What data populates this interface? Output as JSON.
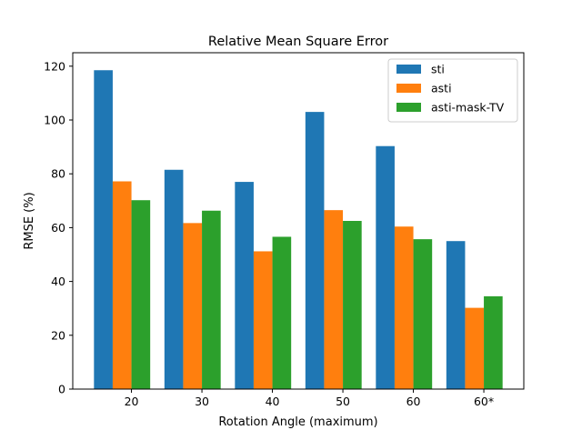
{
  "chart_data": {
    "type": "bar",
    "title": "Relative Mean Square Error",
    "xlabel": "Rotation Angle (maximum)",
    "ylabel": "RMSE (%)",
    "categories": [
      "20",
      "30",
      "40",
      "50",
      "60",
      "60*"
    ],
    "ylim": [
      0,
      125
    ],
    "yticks": [
      0,
      20,
      40,
      60,
      80,
      100,
      120
    ],
    "grid": false,
    "legend_position": "top-right",
    "series": [
      {
        "name": "sti",
        "color": "#1f77b4",
        "values": [
          118.5,
          81.5,
          77,
          103,
          90.3,
          55
        ]
      },
      {
        "name": "asti",
        "color": "#ff7f0e",
        "values": [
          77.2,
          61.7,
          51.2,
          66.5,
          60.4,
          30.2
        ]
      },
      {
        "name": "asti-mask-TV",
        "color": "#2ca02c",
        "values": [
          70.2,
          66.3,
          56.6,
          62.5,
          55.7,
          34.5
        ]
      }
    ]
  }
}
